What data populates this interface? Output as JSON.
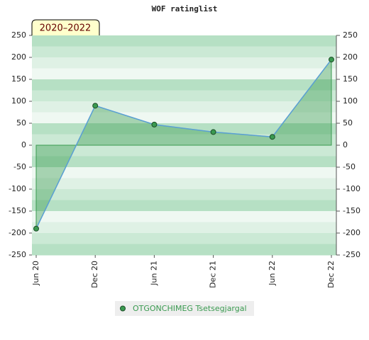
{
  "chart_data": {
    "type": "area",
    "title": "WOF ratinglist",
    "annotation": "2020–2022",
    "categories": [
      "Jun 20",
      "Dec 20",
      "Jun 21",
      "Dec 21",
      "Jun 22",
      "Dec 22"
    ],
    "series": [
      {
        "name": "OTGONCHIMEG Tsetsegjargal",
        "color": "#3a9a50",
        "values": [
          -190,
          90,
          47,
          30,
          19,
          195
        ]
      }
    ],
    "ylim": [
      -250,
      250
    ],
    "yticks": [
      -250,
      -200,
      -150,
      -100,
      -50,
      0,
      50,
      100,
      150,
      200,
      250
    ],
    "y2lim": [
      -250,
      250
    ],
    "y2ticks": [
      -250,
      -200,
      -150,
      -100,
      -50,
      0,
      50,
      100,
      150,
      200,
      250
    ],
    "legend": "bottom"
  }
}
